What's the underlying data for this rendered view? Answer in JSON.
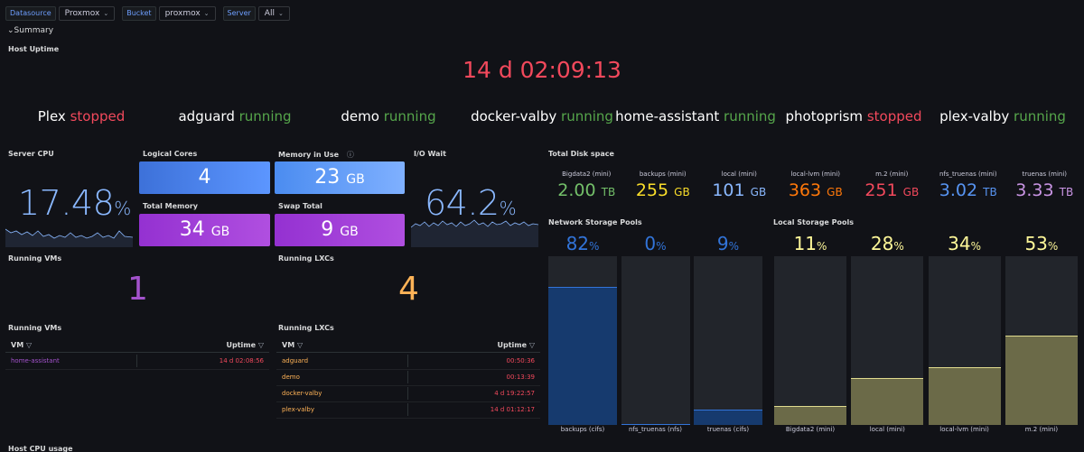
{
  "variables": [
    {
      "label": "Datasource",
      "value": "Proxmox"
    },
    {
      "label": "Bucket",
      "value": "proxmox"
    },
    {
      "label": "Server",
      "value": "All"
    }
  ],
  "row_title": "Summary",
  "host_uptime": {
    "title": "Host Uptime",
    "value": "14 d 02:09:13"
  },
  "vm_statuses": [
    {
      "name": "Plex",
      "status": "stopped"
    },
    {
      "name": "adguard",
      "status": "running"
    },
    {
      "name": "demo",
      "status": "running"
    },
    {
      "name": "docker-valby",
      "status": "running"
    },
    {
      "name": "home-assistant",
      "status": "running"
    },
    {
      "name": "photoprism",
      "status": "stopped"
    },
    {
      "name": "plex-valby",
      "status": "running"
    }
  ],
  "server_cpu": {
    "title": "Server CPU",
    "value": "17.48",
    "unit": "%"
  },
  "logical_cores": {
    "title": "Logical Cores",
    "value": "4"
  },
  "memory_in_use": {
    "title": "Memory in Use",
    "value": "23",
    "unit": "GB"
  },
  "total_memory": {
    "title": "Total Memory",
    "value": "34",
    "unit": "GB"
  },
  "swap_total": {
    "title": "Swap Total",
    "value": "9",
    "unit": "GB"
  },
  "io_wait": {
    "title": "I/O Wait",
    "value": "64.2",
    "unit": "%"
  },
  "running_vms_count": {
    "title": "Running VMs",
    "value": "1"
  },
  "running_lxcs_count": {
    "title": "Running LXCs",
    "value": "4"
  },
  "total_disk": {
    "title": "Total Disk space",
    "items": [
      {
        "label": "Bigdata2 (mini)",
        "value": "2.00",
        "unit": "TB",
        "color": "#73bf69"
      },
      {
        "label": "backups (mini)",
        "value": "255",
        "unit": "GB",
        "color": "#fade2a"
      },
      {
        "label": "local (mini)",
        "value": "101",
        "unit": "GB",
        "color": "#8ab8ff"
      },
      {
        "label": "local-lvm (mini)",
        "value": "363",
        "unit": "GB",
        "color": "#ff780a"
      },
      {
        "label": "m.2 (mini)",
        "value": "251",
        "unit": "GB",
        "color": "#f2495c"
      },
      {
        "label": "nfs_truenas (mini)",
        "value": "3.02",
        "unit": "TB",
        "color": "#5794f2"
      },
      {
        "label": "truenas (mini)",
        "value": "3.33",
        "unit": "TB",
        "color": "#ca95e5"
      }
    ]
  },
  "network_pools": {
    "title": "Network Storage Pools",
    "bars": [
      {
        "name": "backups (cifs)",
        "pct": 82,
        "label": "82",
        "unit": "%"
      },
      {
        "name": "nfs_truenas (nfs)",
        "pct": 0,
        "label": "0",
        "unit": "%"
      },
      {
        "name": "truenas (cifs)",
        "pct": 9,
        "label": "9",
        "unit": "%"
      }
    ]
  },
  "local_pools": {
    "title": "Local Storage Pools",
    "bars": [
      {
        "name": "Bigdata2 (mini)",
        "pct": 11,
        "label": "11",
        "unit": "%"
      },
      {
        "name": "local (mini)",
        "pct": 28,
        "label": "28",
        "unit": "%"
      },
      {
        "name": "local-lvm (mini)",
        "pct": 34,
        "label": "34",
        "unit": "%"
      },
      {
        "name": "m.2 (mini)",
        "pct": 53,
        "label": "53",
        "unit": "%"
      }
    ]
  },
  "vm_table": {
    "title": "Running VMs",
    "col1": "VM",
    "col2": "Uptime",
    "rows": [
      {
        "name": "home-assistant",
        "uptime": "14 d 02:08:56"
      }
    ]
  },
  "lxc_table": {
    "title": "Running LXCs",
    "col1": "VM",
    "col2": "Uptime",
    "rows": [
      {
        "name": "adguard",
        "uptime": "00:50:36"
      },
      {
        "name": "demo",
        "uptime": "00:13:39"
      },
      {
        "name": "docker-valby",
        "uptime": "4 d 19:22:57"
      },
      {
        "name": "plex-valby",
        "uptime": "14 d 01:12:17"
      }
    ]
  },
  "bottom_title": "Host CPU usage"
}
